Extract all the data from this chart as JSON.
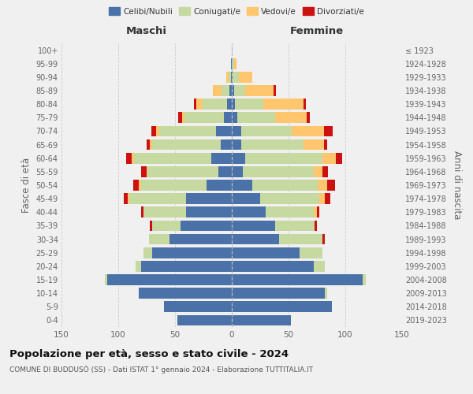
{
  "age_groups": [
    "0-4",
    "5-9",
    "10-14",
    "15-19",
    "20-24",
    "25-29",
    "30-34",
    "35-39",
    "40-44",
    "45-49",
    "50-54",
    "55-59",
    "60-64",
    "65-69",
    "70-74",
    "75-79",
    "80-84",
    "85-89",
    "90-94",
    "95-99",
    "100+"
  ],
  "birth_years": [
    "2019-2023",
    "2014-2018",
    "2009-2013",
    "2004-2008",
    "1999-2003",
    "1994-1998",
    "1989-1993",
    "1984-1988",
    "1979-1983",
    "1974-1978",
    "1969-1973",
    "1964-1968",
    "1959-1963",
    "1954-1958",
    "1949-1953",
    "1944-1948",
    "1939-1943",
    "1934-1938",
    "1929-1933",
    "1924-1928",
    "≤ 1923"
  ],
  "maschi": {
    "celibi": [
      48,
      60,
      82,
      110,
      80,
      70,
      55,
      45,
      40,
      40,
      22,
      12,
      18,
      10,
      14,
      7,
      4,
      2,
      1,
      1,
      0
    ],
    "coniugati": [
      0,
      0,
      0,
      2,
      5,
      8,
      18,
      25,
      38,
      50,
      58,
      62,
      68,
      60,
      50,
      35,
      22,
      7,
      2,
      0,
      0
    ],
    "vedovi": [
      0,
      0,
      0,
      0,
      0,
      0,
      0,
      0,
      0,
      2,
      2,
      1,
      2,
      2,
      3,
      2,
      5,
      8,
      2,
      0,
      0
    ],
    "divorziati": [
      0,
      0,
      0,
      0,
      0,
      0,
      0,
      2,
      2,
      3,
      5,
      5,
      5,
      3,
      4,
      3,
      2,
      0,
      0,
      0,
      0
    ]
  },
  "femmine": {
    "nubili": [
      52,
      88,
      82,
      115,
      72,
      60,
      42,
      38,
      30,
      25,
      18,
      10,
      12,
      8,
      8,
      5,
      3,
      2,
      1,
      0,
      0
    ],
    "coniugate": [
      0,
      0,
      2,
      3,
      10,
      20,
      38,
      35,
      42,
      52,
      58,
      62,
      68,
      55,
      45,
      33,
      25,
      10,
      5,
      2,
      0
    ],
    "vedove": [
      0,
      0,
      0,
      0,
      0,
      0,
      0,
      0,
      3,
      5,
      8,
      8,
      12,
      18,
      28,
      28,
      35,
      25,
      12,
      2,
      0
    ],
    "divorziate": [
      0,
      0,
      0,
      0,
      0,
      0,
      2,
      2,
      2,
      5,
      7,
      5,
      5,
      3,
      8,
      3,
      2,
      2,
      0,
      0,
      0
    ]
  },
  "colors": {
    "celibi": "#4a72a8",
    "coniugati": "#c5d9a0",
    "vedovi": "#ffc66e",
    "divorziati": "#cc1111"
  },
  "title": "Popolazione per età, sesso e stato civile - 2024",
  "subtitle": "COMUNE DI BUDDUSÒ (SS) - Dati ISTAT 1° gennaio 2024 - Elaborazione TUTTITALIA.IT",
  "ylabel_left": "Fasce di età",
  "ylabel_right": "Anni di nascita",
  "xlabel_left": "Maschi",
  "xlabel_right": "Femmine",
  "xlim": 150,
  "background_color": "#f0f0f0"
}
